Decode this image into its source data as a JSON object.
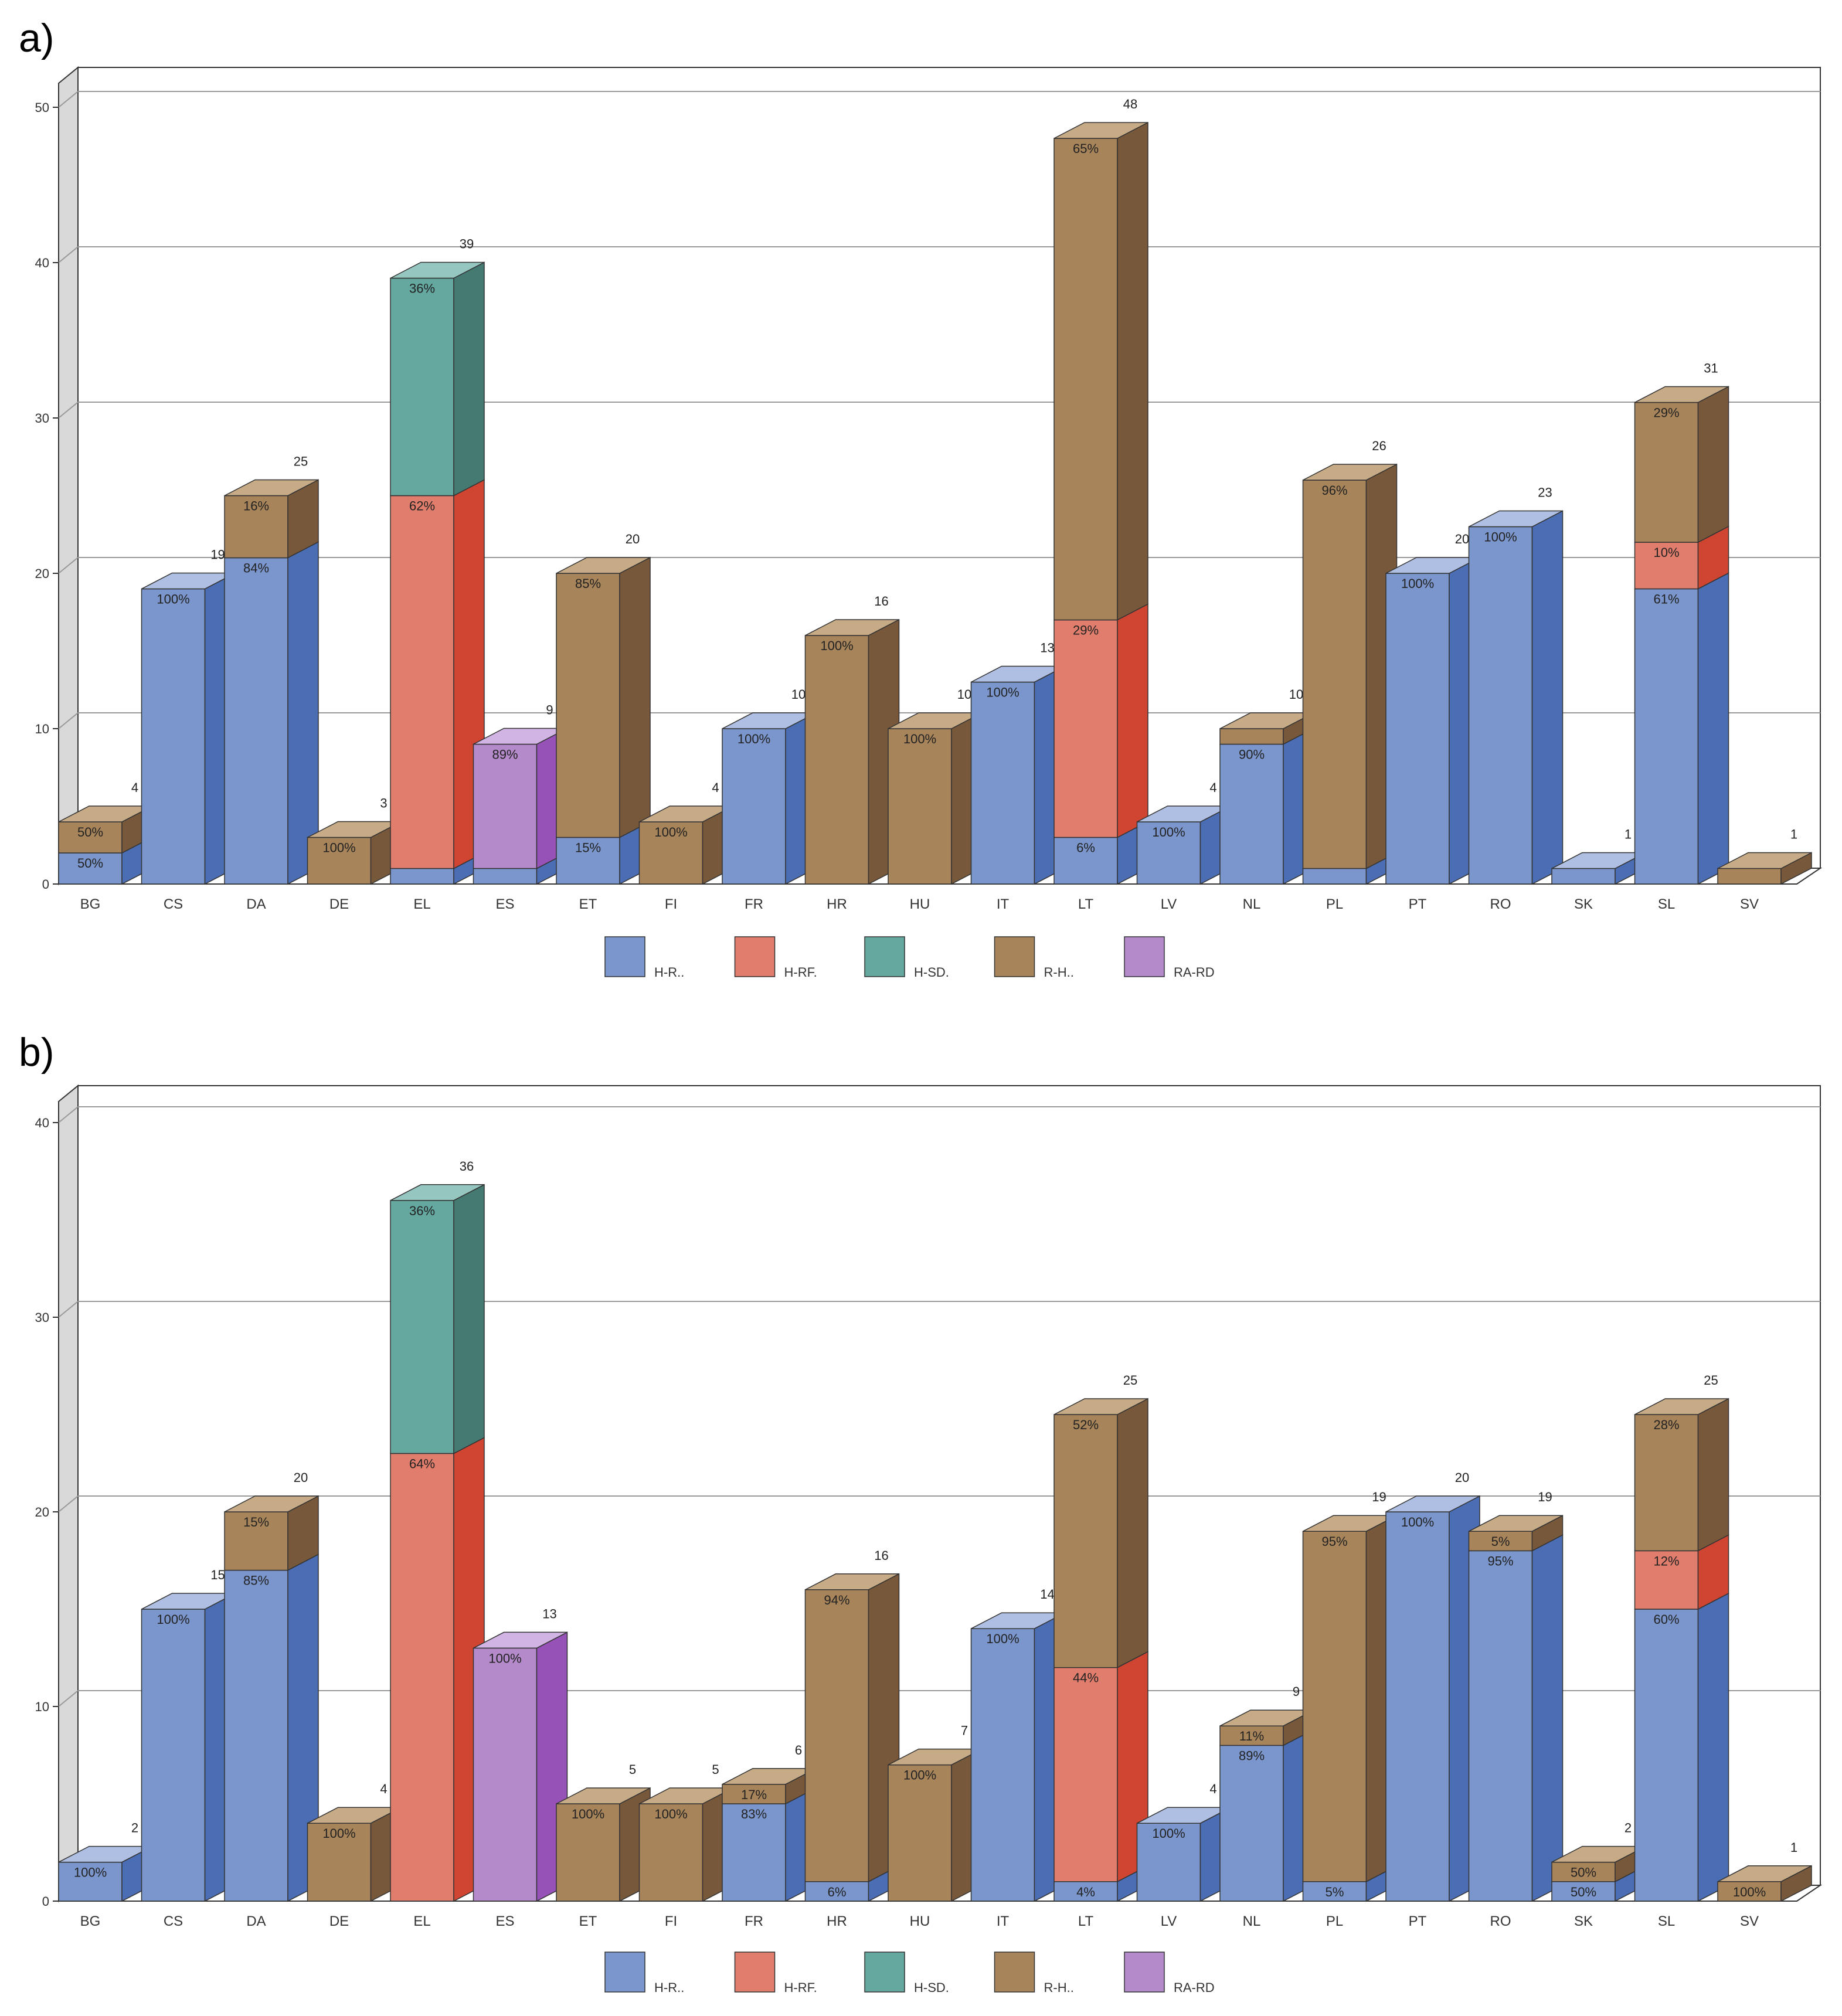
{
  "colors": {
    "H-R..": {
      "front": "#7b96cc",
      "side": "#4a6db3",
      "top": "#aebfe3"
    },
    "H-RF.": {
      "front": "#e07d6c",
      "side": "#d04532",
      "top": "#eda99c"
    },
    "H-SD.": {
      "front": "#64a8a0",
      "side": "#447a72",
      "top": "#95c7c0"
    },
    "R-H..": {
      "front": "#a8845a",
      "side": "#78583a",
      "top": "#c7aa86"
    },
    "RA-RD": {
      "front": "#b48acb",
      "side": "#9652b7",
      "top": "#d2b4e4"
    }
  },
  "chart_data": [
    {
      "type": "bar",
      "stacked": true,
      "panel_label": "a)",
      "legend_labels": [
        "H-R..",
        "H-RF.",
        "H-SD.",
        "R-H..",
        "RA-RD"
      ],
      "ylim": [
        0,
        50
      ],
      "yticks": [
        0,
        10,
        20,
        30,
        40,
        50
      ],
      "categories": [
        "BG",
        "CS",
        "DA",
        "DE",
        "EL",
        "ES",
        "ET",
        "FI",
        "FR",
        "HR",
        "HU",
        "IT",
        "LT",
        "LV",
        "NL",
        "PL",
        "PT",
        "RO",
        "SK",
        "SL",
        "SV"
      ],
      "bars": [
        {
          "total": 4,
          "total_label": "4",
          "segments": [
            {
              "series": "H-R..",
              "value": 2,
              "label": "50%"
            },
            {
              "series": "R-H..",
              "value": 2,
              "label": "50%"
            }
          ]
        },
        {
          "total": 19,
          "total_label": "19",
          "segments": [
            {
              "series": "H-R..",
              "value": 19,
              "label": "100%"
            }
          ]
        },
        {
          "total": 25,
          "total_label": "25",
          "segments": [
            {
              "series": "H-R..",
              "value": 21,
              "label": "84%"
            },
            {
              "series": "R-H..",
              "value": 4,
              "label": "16%"
            }
          ]
        },
        {
          "total": 3,
          "total_label": "3",
          "segments": [
            {
              "series": "R-H..",
              "value": 3,
              "label": "100%"
            }
          ]
        },
        {
          "total": 39,
          "total_label": "39",
          "segments": [
            {
              "series": "H-R..",
              "value": 1,
              "label": ""
            },
            {
              "series": "H-RF.",
              "value": 24,
              "label": "62%"
            },
            {
              "series": "H-SD.",
              "value": 14,
              "label": "36%"
            }
          ]
        },
        {
          "total": 9,
          "total_label": "9",
          "segments": [
            {
              "series": "H-R..",
              "value": 1,
              "label": ""
            },
            {
              "series": "RA-RD",
              "value": 8,
              "label": "89%"
            }
          ]
        },
        {
          "total": 20,
          "total_label": "20",
          "segments": [
            {
              "series": "H-R..",
              "value": 3,
              "label": "15%"
            },
            {
              "series": "R-H..",
              "value": 17,
              "label": "85%"
            }
          ]
        },
        {
          "total": 4,
          "total_label": "4",
          "segments": [
            {
              "series": "R-H..",
              "value": 4,
              "label": "100%"
            }
          ]
        },
        {
          "total": 10,
          "total_label": "10",
          "segments": [
            {
              "series": "H-R..",
              "value": 10,
              "label": "100%"
            }
          ]
        },
        {
          "total": 16,
          "total_label": "16",
          "segments": [
            {
              "series": "R-H..",
              "value": 16,
              "label": "100%"
            }
          ]
        },
        {
          "total": 10,
          "total_label": "10",
          "segments": [
            {
              "series": "R-H..",
              "value": 10,
              "label": "100%"
            }
          ]
        },
        {
          "total": 13,
          "total_label": "13",
          "segments": [
            {
              "series": "H-R..",
              "value": 13,
              "label": "100%"
            }
          ]
        },
        {
          "total": 48,
          "total_label": "48",
          "segments": [
            {
              "series": "H-R..",
              "value": 3,
              "label": "6%"
            },
            {
              "series": "H-RF.",
              "value": 14,
              "label": "29%"
            },
            {
              "series": "R-H..",
              "value": 31,
              "label": "65%"
            }
          ]
        },
        {
          "total": 4,
          "total_label": "4",
          "segments": [
            {
              "series": "H-R..",
              "value": 4,
              "label": "100%"
            }
          ]
        },
        {
          "total": 10,
          "total_label": "10",
          "segments": [
            {
              "series": "H-R..",
              "value": 9,
              "label": "90%"
            },
            {
              "series": "R-H..",
              "value": 1,
              "label": ""
            }
          ]
        },
        {
          "total": 26,
          "total_label": "26",
          "segments": [
            {
              "series": "H-R..",
              "value": 1,
              "label": ""
            },
            {
              "series": "R-H..",
              "value": 25,
              "label": "96%"
            }
          ]
        },
        {
          "total": 20,
          "total_label": "20",
          "segments": [
            {
              "series": "H-R..",
              "value": 20,
              "label": "100%"
            }
          ]
        },
        {
          "total": 23,
          "total_label": "23",
          "segments": [
            {
              "series": "H-R..",
              "value": 23,
              "label": "100%"
            }
          ]
        },
        {
          "total": 1,
          "total_label": "1",
          "segments": [
            {
              "series": "H-R..",
              "value": 1,
              "label": ""
            }
          ]
        },
        {
          "total": 31,
          "total_label": "31",
          "segments": [
            {
              "series": "H-R..",
              "value": 19,
              "label": "61%"
            },
            {
              "series": "H-RF.",
              "value": 3,
              "label": "10%"
            },
            {
              "series": "R-H..",
              "value": 9,
              "label": "29%"
            }
          ]
        },
        {
          "total": 1,
          "total_label": "1",
          "segments": [
            {
              "series": "R-H..",
              "value": 1,
              "label": ""
            }
          ]
        }
      ]
    },
    {
      "type": "bar",
      "stacked": true,
      "panel_label": "b)",
      "legend_labels": [
        "H-R..",
        "H-RF.",
        "H-SD.",
        "R-H..",
        "RA-RD"
      ],
      "ylim": [
        0,
        40
      ],
      "yticks": [
        0,
        10,
        20,
        30,
        40
      ],
      "categories": [
        "BG",
        "CS",
        "DA",
        "DE",
        "EL",
        "ES",
        "ET",
        "FI",
        "FR",
        "HR",
        "HU",
        "IT",
        "LT",
        "LV",
        "NL",
        "PL",
        "PT",
        "RO",
        "SK",
        "SL",
        "SV"
      ],
      "bars": [
        {
          "total": 2,
          "total_label": "2",
          "segments": [
            {
              "series": "H-R..",
              "value": 2,
              "label": "100%"
            }
          ]
        },
        {
          "total": 15,
          "total_label": "15",
          "segments": [
            {
              "series": "H-R..",
              "value": 15,
              "label": "100%"
            }
          ]
        },
        {
          "total": 20,
          "total_label": "20",
          "segments": [
            {
              "series": "H-R..",
              "value": 17,
              "label": "85%"
            },
            {
              "series": "R-H..",
              "value": 3,
              "label": "15%"
            }
          ]
        },
        {
          "total": 4,
          "total_label": "4",
          "segments": [
            {
              "series": "R-H..",
              "value": 4,
              "label": "100%"
            }
          ]
        },
        {
          "total": 36,
          "total_label": "36",
          "segments": [
            {
              "series": "H-RF.",
              "value": 23,
              "label": "64%"
            },
            {
              "series": "H-SD.",
              "value": 13,
              "label": "36%"
            }
          ]
        },
        {
          "total": 13,
          "total_label": "13",
          "segments": [
            {
              "series": "RA-RD",
              "value": 13,
              "label": "100%"
            }
          ]
        },
        {
          "total": 5,
          "total_label": "5",
          "segments": [
            {
              "series": "R-H..",
              "value": 5,
              "label": "100%"
            }
          ]
        },
        {
          "total": 5,
          "total_label": "5",
          "segments": [
            {
              "series": "R-H..",
              "value": 5,
              "label": "100%"
            }
          ]
        },
        {
          "total": 6,
          "total_label": "6",
          "segments": [
            {
              "series": "H-R..",
              "value": 5,
              "label": "83%"
            },
            {
              "series": "R-H..",
              "value": 1,
              "label": "17%"
            }
          ]
        },
        {
          "total": 16,
          "total_label": "16",
          "segments": [
            {
              "series": "H-R..",
              "value": 1,
              "label": "6%"
            },
            {
              "series": "R-H..",
              "value": 15,
              "label": "94%"
            }
          ]
        },
        {
          "total": 7,
          "total_label": "7",
          "segments": [
            {
              "series": "R-H..",
              "value": 7,
              "label": "100%"
            }
          ]
        },
        {
          "total": 14,
          "total_label": "14",
          "segments": [
            {
              "series": "H-R..",
              "value": 14,
              "label": "100%"
            }
          ]
        },
        {
          "total": 25,
          "total_label": "25",
          "segments": [
            {
              "series": "H-R..",
              "value": 1,
              "label": "4%"
            },
            {
              "series": "H-RF.",
              "value": 11,
              "label": "44%"
            },
            {
              "series": "R-H..",
              "value": 13,
              "label": "52%"
            }
          ]
        },
        {
          "total": 4,
          "total_label": "4",
          "segments": [
            {
              "series": "H-R..",
              "value": 4,
              "label": "100%"
            }
          ]
        },
        {
          "total": 9,
          "total_label": "9",
          "segments": [
            {
              "series": "H-R..",
              "value": 8,
              "label": "89%"
            },
            {
              "series": "R-H..",
              "value": 1,
              "label": "11%"
            }
          ]
        },
        {
          "total": 19,
          "total_label": "19",
          "segments": [
            {
              "series": "H-R..",
              "value": 1,
              "label": "5%"
            },
            {
              "series": "R-H..",
              "value": 18,
              "label": "95%"
            }
          ]
        },
        {
          "total": 20,
          "total_label": "20",
          "segments": [
            {
              "series": "H-R..",
              "value": 20,
              "label": "100%"
            }
          ]
        },
        {
          "total": 19,
          "total_label": "19",
          "segments": [
            {
              "series": "H-R..",
              "value": 18,
              "label": "95%"
            },
            {
              "series": "R-H..",
              "value": 1,
              "label": "5%"
            }
          ]
        },
        {
          "total": 2,
          "total_label": "2",
          "segments": [
            {
              "series": "H-R..",
              "value": 1,
              "label": "50%"
            },
            {
              "series": "R-H..",
              "value": 1,
              "label": "50%"
            }
          ]
        },
        {
          "total": 25,
          "total_label": "25",
          "segments": [
            {
              "series": "H-R..",
              "value": 15,
              "label": "60%"
            },
            {
              "series": "H-RF.",
              "value": 3,
              "label": "12%"
            },
            {
              "series": "R-H..",
              "value": 7,
              "label": "28%"
            }
          ]
        },
        {
          "total": 1,
          "total_label": "1",
          "segments": [
            {
              "series": "R-H..",
              "value": 1,
              "label": "100%"
            }
          ]
        }
      ]
    }
  ]
}
